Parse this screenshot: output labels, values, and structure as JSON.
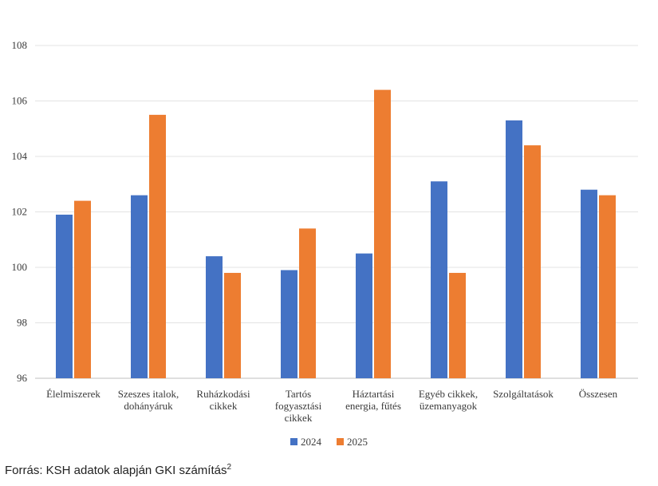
{
  "chart_data": {
    "type": "bar",
    "categories": [
      [
        "Élelmiszerek"
      ],
      [
        "Szeszes italok,",
        "dohányáruk"
      ],
      [
        "Ruházkodási",
        "cikkek"
      ],
      [
        "Tartós",
        "fogyasztási",
        "cikkek"
      ],
      [
        "Háztartási",
        "energia, fűtés"
      ],
      [
        "Egyéb cikkek,",
        "üzemanyagok"
      ],
      [
        "Szolgáltatások"
      ],
      [
        "Összesen"
      ]
    ],
    "series": [
      {
        "name": "2024",
        "color": "#4472C4",
        "values": [
          101.9,
          102.6,
          100.4,
          99.9,
          100.5,
          103.1,
          105.3,
          102.8
        ]
      },
      {
        "name": "2025",
        "color": "#ED7D31",
        "values": [
          102.4,
          105.5,
          99.8,
          101.4,
          106.4,
          99.8,
          104.4,
          102.6
        ]
      }
    ],
    "yticks": [
      "96",
      "98",
      "100",
      "102",
      "104",
      "106",
      "108"
    ],
    "ylim": [
      96,
      108
    ],
    "grid": true,
    "legend_position": "bottom"
  },
  "source": {
    "text": "Forrás: KSH adatok alapján GKI számítás",
    "footnote": "2"
  }
}
